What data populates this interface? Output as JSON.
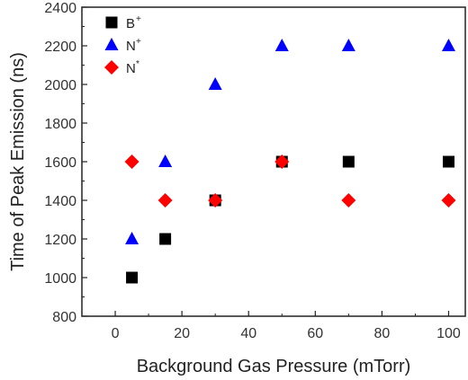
{
  "chart_data": {
    "type": "scatter",
    "title": "",
    "xlabel": "Background Gas Pressure (mTorr)",
    "ylabel": "Time of Peak Emission (ns)",
    "xlim": [
      -10,
      105
    ],
    "ylim": [
      800,
      2400
    ],
    "x_ticks": [
      "0",
      "20",
      "40",
      "60",
      "80",
      "100"
    ],
    "y_ticks": [
      "800",
      "1000",
      "1200",
      "1400",
      "1600",
      "1800",
      "2000",
      "2200",
      "2400"
    ],
    "grid": false,
    "legend_position": "top-left",
    "series": [
      {
        "name": "B",
        "name_sup": "+",
        "marker": "square",
        "color": "#000000",
        "x": [
          5,
          15,
          30,
          50,
          70,
          100
        ],
        "y": [
          1000,
          1200,
          1400,
          1600,
          1600,
          1600
        ]
      },
      {
        "name": "N",
        "name_sup": "+",
        "marker": "triangle",
        "color": "#0000ff",
        "x": [
          5,
          15,
          30,
          50,
          70,
          100
        ],
        "y": [
          1200,
          1600,
          2000,
          2200,
          2200,
          2200
        ]
      },
      {
        "name": "N",
        "name_sup": "*",
        "marker": "diamond",
        "color": "#ff0000",
        "x": [
          5,
          15,
          30,
          50,
          70,
          100
        ],
        "y": [
          1600,
          1400,
          1400,
          1600,
          1400,
          1400
        ]
      }
    ]
  }
}
